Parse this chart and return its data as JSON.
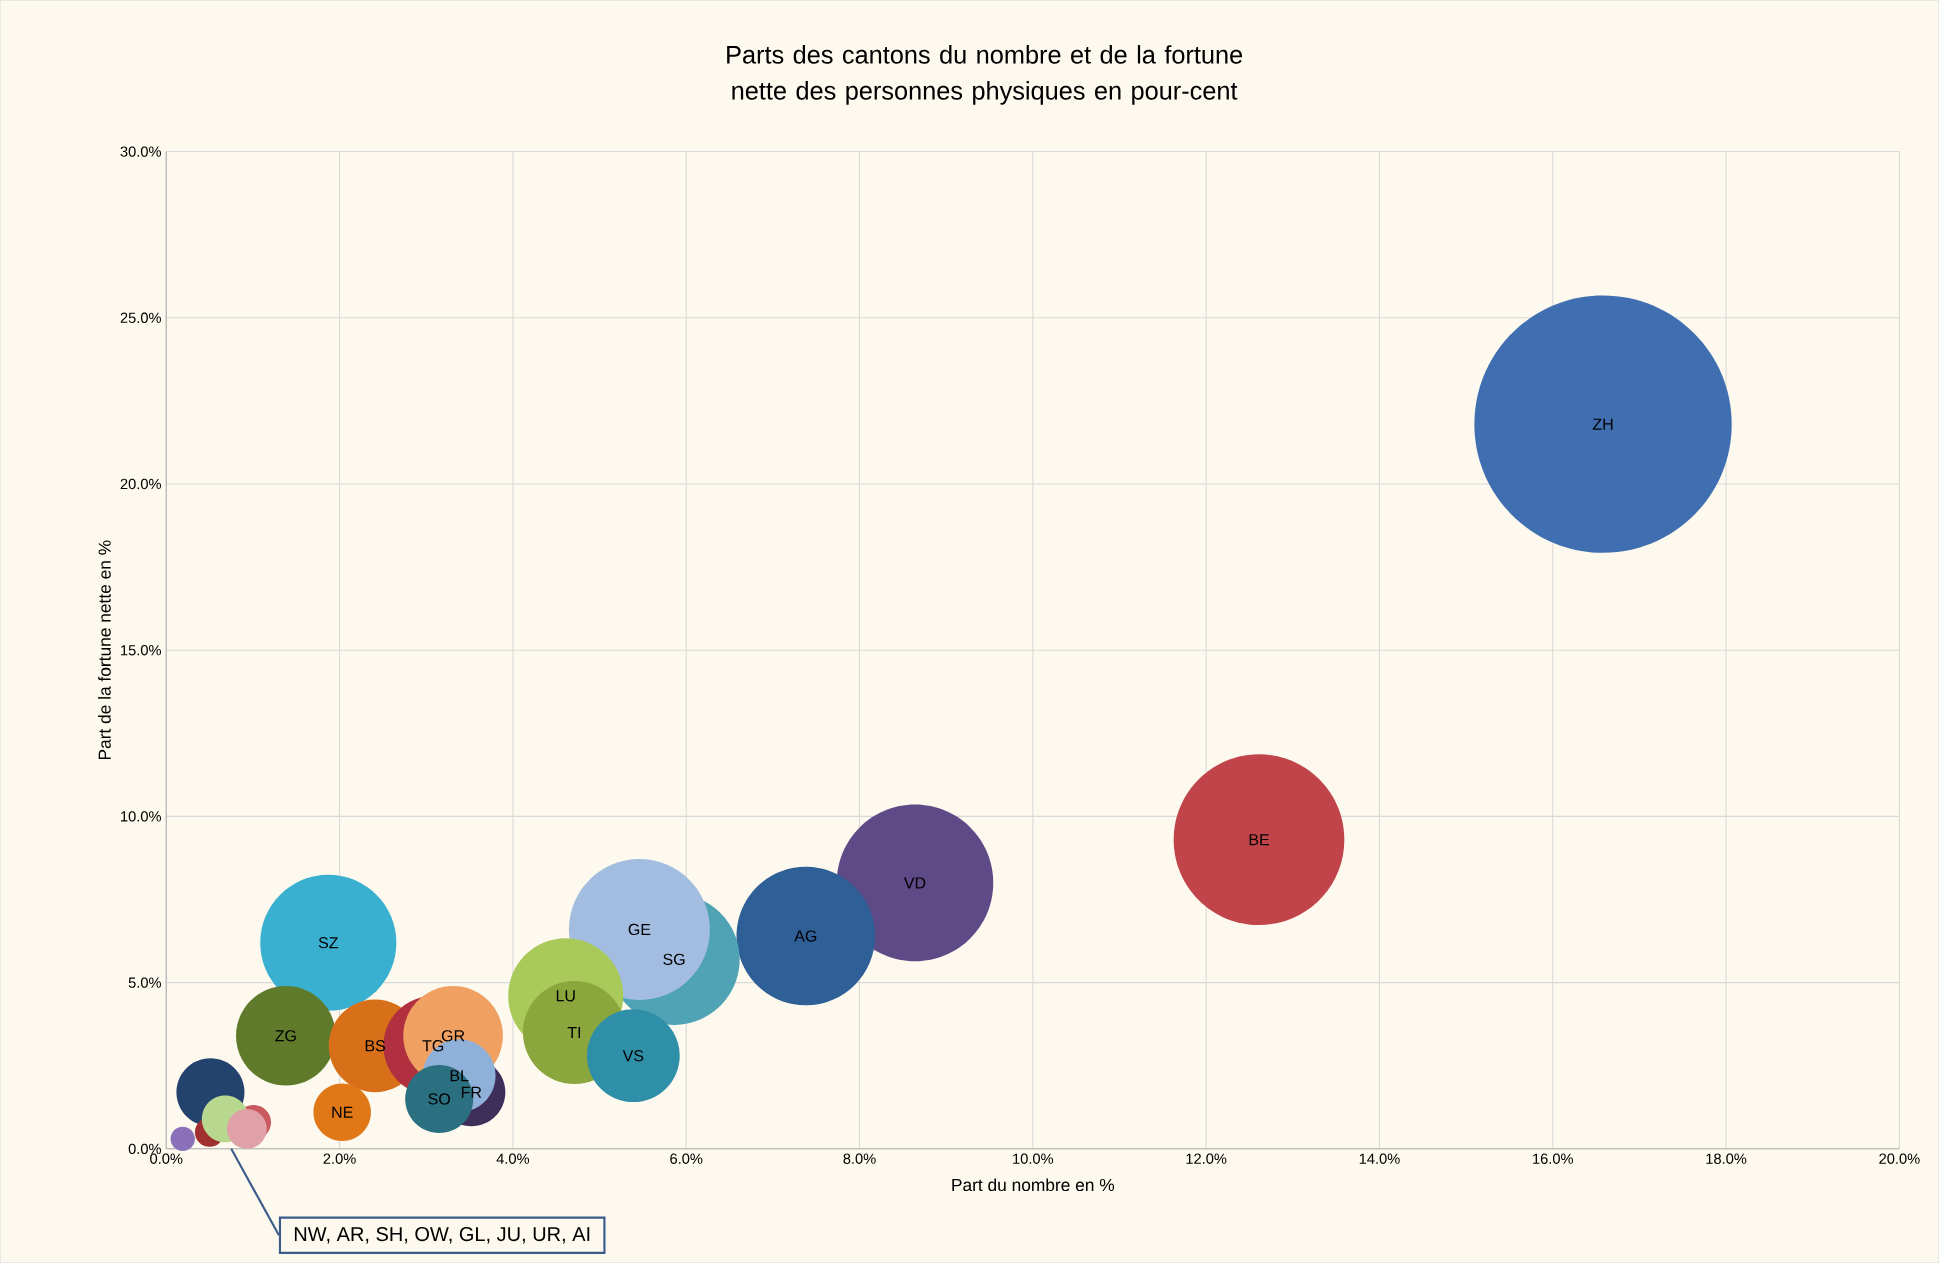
{
  "chart_data": {
    "type": "bubble",
    "title": "Parts des cantons du nombre et de la fortune nette des personnes physiques en pour-cent",
    "xlabel": "Part du nombre en %",
    "ylabel": "Part de la fortune nette en %",
    "xlim": [
      0,
      20
    ],
    "ylim": [
      0,
      30
    ],
    "xticks": [
      {
        "value": 0,
        "label": "0.0%"
      },
      {
        "value": 2,
        "label": "2.0%"
      },
      {
        "value": 4,
        "label": "4.0%"
      },
      {
        "value": 6,
        "label": "6.0%"
      },
      {
        "value": 8,
        "label": "8.0%"
      },
      {
        "value": 10,
        "label": "10.0%"
      },
      {
        "value": 12,
        "label": "12.0%"
      },
      {
        "value": 14,
        "label": "14.0%"
      },
      {
        "value": 16,
        "label": "16.0%"
      },
      {
        "value": 18,
        "label": "18.0%"
      },
      {
        "value": 20,
        "label": "20.0%"
      }
    ],
    "yticks": [
      {
        "value": 0,
        "label": "0.0%"
      },
      {
        "value": 5,
        "label": "5.0%"
      },
      {
        "value": 10,
        "label": "10.0%"
      },
      {
        "value": 15,
        "label": "15.0%"
      },
      {
        "value": 20,
        "label": "20.0%"
      },
      {
        "value": 25,
        "label": "25.0%"
      },
      {
        "value": 30,
        "label": "30.0%"
      }
    ],
    "grid": true,
    "annotations": [
      "NW, AR, SH, OW, GL, JU, UR, AI"
    ],
    "series": [
      {
        "name": "ZH",
        "color": "#3f6fb0",
        "x": [
          16.58
        ],
        "values": [
          21.8
        ],
        "sizes": [
          1
        ]
      },
      {
        "name": "BE",
        "color": "#c0444a",
        "x": [
          12.61
        ],
        "values": [
          9.3
        ],
        "sizes": [
          0.44
        ]
      },
      {
        "name": "VD",
        "color": "#5e4a86",
        "x": [
          8.64
        ],
        "values": [
          8.0
        ],
        "sizes": [
          0.37
        ]
      },
      {
        "name": "AG",
        "color": "#2f5f97",
        "x": [
          7.38
        ],
        "values": [
          6.4
        ],
        "sizes": [
          0.29
        ]
      },
      {
        "name": "SG",
        "color": "#4fa3b5",
        "x": [
          5.86
        ],
        "values": [
          5.7
        ],
        "sizes": [
          0.26
        ]
      },
      {
        "name": "GE",
        "color": "#a3bde0",
        "x": [
          5.46
        ],
        "values": [
          6.6
        ],
        "sizes": [
          0.3
        ]
      },
      {
        "name": "LU",
        "color": "#a9c95a",
        "x": [
          4.61
        ],
        "values": [
          4.6
        ],
        "sizes": [
          0.2
        ]
      },
      {
        "name": "TI",
        "color": "#8aa63c",
        "x": [
          4.71
        ],
        "values": [
          3.5
        ],
        "sizes": [
          0.16
        ]
      },
      {
        "name": "VS",
        "color": "#2f8fa8",
        "x": [
          5.39
        ],
        "values": [
          2.8
        ],
        "sizes": [
          0.13
        ]
      },
      {
        "name": "SZ",
        "color": "#3ab0d0",
        "x": [
          1.87
        ],
        "values": [
          6.2
        ],
        "sizes": [
          0.28
        ]
      },
      {
        "name": "ZG",
        "color": "#5f7a2a",
        "x": [
          1.38
        ],
        "values": [
          3.4
        ],
        "sizes": [
          0.15
        ]
      },
      {
        "name": "BS",
        "color": "#d8701a",
        "x": [
          2.41
        ],
        "values": [
          3.1
        ],
        "sizes": [
          0.13
        ]
      },
      {
        "name": "FR",
        "color": "#3e2f5a",
        "x": [
          3.52
        ],
        "values": [
          1.7
        ],
        "sizes": [
          0.07
        ]
      },
      {
        "name": "TG",
        "color": "#b03040",
        "x": [
          3.08
        ],
        "values": [
          3.1
        ],
        "sizes": [
          0.15
        ]
      },
      {
        "name": "GR",
        "color": "#f0a060",
        "x": [
          3.31
        ],
        "values": [
          3.4
        ],
        "sizes": [
          0.15
        ]
      },
      {
        "name": "BL",
        "color": "#8fb0d8",
        "x": [
          3.38
        ],
        "values": [
          2.2
        ],
        "sizes": [
          0.08
        ]
      },
      {
        "name": "SO",
        "color": "#2a7080",
        "x": [
          3.15
        ],
        "values": [
          1.5
        ],
        "sizes": [
          0.07
        ]
      },
      {
        "name": "NE",
        "color": "#e07818",
        "x": [
          2.03
        ],
        "values": [
          1.1
        ],
        "sizes": [
          0.05
        ]
      },
      {
        "color": "#24426e",
        "x": [
          0.51
        ],
        "values": [
          1.7
        ],
        "sizes": [
          0.07
        ]
      },
      {
        "color": "#a03030",
        "x": [
          0.5
        ],
        "values": [
          0.5
        ],
        "sizes": [
          0.013
        ]
      },
      {
        "color": "#c85a60",
        "x": [
          1.01
        ],
        "values": [
          0.8
        ],
        "sizes": [
          0.018
        ]
      },
      {
        "color": "#b8d890",
        "x": [
          0.68
        ],
        "values": [
          0.9
        ],
        "sizes": [
          0.033
        ]
      },
      {
        "color": "#e0a0a8",
        "x": [
          0.93
        ],
        "values": [
          0.6
        ],
        "sizes": [
          0.024
        ]
      },
      {
        "color": "#8a70b8",
        "x": [
          0.19
        ],
        "values": [
          0.3
        ],
        "sizes": [
          0.009
        ]
      }
    ]
  }
}
